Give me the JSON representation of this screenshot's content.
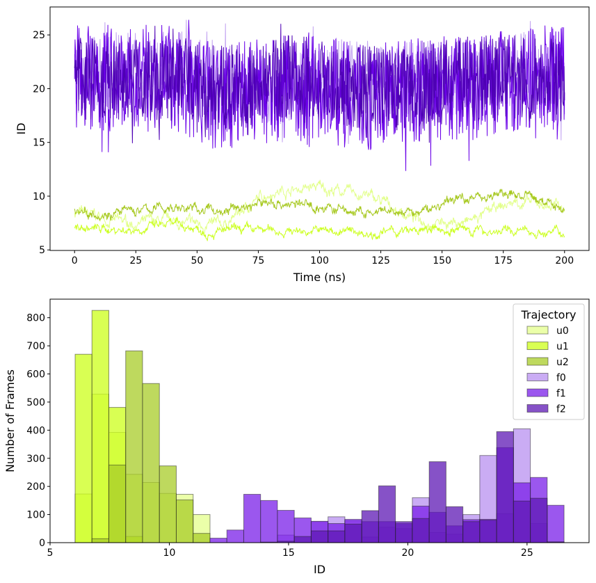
{
  "chart_data": [
    {
      "type": "line",
      "title": "",
      "xlabel": "Time (ns)",
      "ylabel": "ID",
      "xlim": [
        -10,
        210
      ],
      "ylim": [
        4.95,
        27.6
      ],
      "xticks": [
        0,
        25,
        50,
        75,
        100,
        125,
        150,
        175,
        200
      ],
      "yticks": [
        5,
        10,
        15,
        20,
        25
      ],
      "trace_times": [
        0,
        20,
        40,
        60,
        80,
        100,
        120,
        140,
        160,
        180,
        200
      ],
      "series": [
        {
          "name": "u0",
          "color": "#e2ff8a",
          "mean": [
            8.5,
            7.5,
            7.5,
            7.2,
            10.5,
            10.8,
            10.0,
            7.8,
            7.5,
            9.5,
            9.0
          ],
          "spread": 0.5
        },
        {
          "name": "u1",
          "color": "#ccff22",
          "mean": [
            7.0,
            6.9,
            7.3,
            6.7,
            6.8,
            6.8,
            6.6,
            6.7,
            6.9,
            6.7,
            6.6
          ],
          "spread": 0.4
        },
        {
          "name": "u2",
          "color": "#a6c81e",
          "mean": [
            8.7,
            8.5,
            9.0,
            8.6,
            9.5,
            9.0,
            8.3,
            8.4,
            10.0,
            10.2,
            9.0
          ],
          "spread": 0.45
        },
        {
          "name": "f0",
          "color": "#c0a0f0",
          "mean": [
            21,
            22,
            22,
            21,
            20,
            21,
            21,
            21,
            21,
            22,
            21
          ],
          "spread": 3.5
        },
        {
          "name": "f1",
          "color": "#6a00e8",
          "mean": [
            21,
            21,
            21,
            19,
            20,
            20,
            19,
            20,
            20,
            21,
            21
          ],
          "spread": 5
        },
        {
          "name": "f2",
          "color": "#4e00b4",
          "mean": [
            21,
            21,
            21,
            20,
            21,
            21,
            20,
            20,
            21,
            21,
            21
          ],
          "spread": 4
        }
      ]
    },
    {
      "type": "bar",
      "title": "",
      "xlabel": "ID",
      "ylabel": "Number of Frames",
      "xlim": [
        5,
        27.6
      ],
      "ylim": [
        0,
        866
      ],
      "xticks": [
        5,
        10,
        15,
        20,
        25
      ],
      "yticks": [
        0,
        100,
        200,
        300,
        400,
        500,
        600,
        700,
        800
      ],
      "bin_start": 6.05,
      "bin_width": 0.707,
      "legend": {
        "title": "Trajectory",
        "placement": "top-right"
      },
      "series": [
        {
          "name": "u0",
          "color": "#e4ff8c",
          "values": [
            173,
            528,
            392,
            243,
            214,
            175,
            172,
            100,
            0,
            0,
            0,
            0,
            0,
            0,
            0,
            0,
            0,
            0,
            0,
            0,
            0,
            0,
            0,
            0,
            0,
            0,
            0,
            0,
            0
          ]
        },
        {
          "name": "u1",
          "color": "#ccff1a",
          "values": [
            670,
            826,
            481,
            22,
            0,
            0,
            0,
            0,
            0,
            0,
            0,
            0,
            0,
            0,
            0,
            0,
            0,
            0,
            0,
            0,
            0,
            0,
            0,
            0,
            0,
            0,
            0,
            0,
            0
          ]
        },
        {
          "name": "u2",
          "color": "#a8cc28",
          "values": [
            0,
            14,
            276,
            682,
            566,
            273,
            152,
            33,
            0,
            0,
            0,
            0,
            0,
            0,
            0,
            0,
            0,
            0,
            0,
            0,
            0,
            0,
            0,
            0,
            0,
            0,
            0,
            0,
            0
          ]
        },
        {
          "name": "f0",
          "color": "#b890f0",
          "values": [
            0,
            0,
            0,
            0,
            0,
            0,
            0,
            0,
            0,
            0,
            0,
            0,
            27,
            0,
            75,
            92,
            78,
            20,
            55,
            50,
            160,
            36,
            30,
            100,
            310,
            103,
            405,
            68,
            0
          ]
        },
        {
          "name": "f1",
          "color": "#7a1fe8",
          "values": [
            0,
            0,
            0,
            0,
            0,
            0,
            0,
            0,
            16,
            45,
            172,
            150,
            115,
            88,
            76,
            68,
            83,
            75,
            75,
            68,
            130,
            108,
            60,
            82,
            83,
            338,
            213,
            232,
            133
          ]
        },
        {
          "name": "f2",
          "color": "#5e18b4",
          "values": [
            0,
            0,
            0,
            0,
            0,
            0,
            0,
            0,
            0,
            0,
            0,
            2,
            5,
            22,
            42,
            42,
            66,
            114,
            202,
            75,
            86,
            288,
            128,
            75,
            80,
            395,
            148,
            158,
            3
          ]
        }
      ]
    }
  ]
}
